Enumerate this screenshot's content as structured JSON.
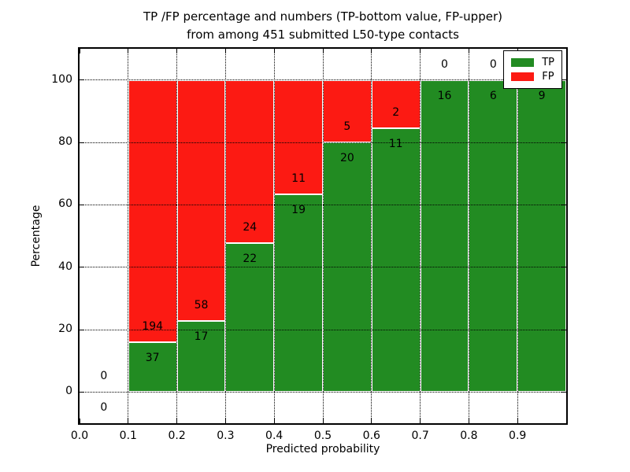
{
  "chart_data": {
    "type": "bar",
    "stacked": true,
    "title_line1": "TP /FP percentage and numbers (TP-bottom value, FP-upper)",
    "title_line2": "from among 451 submitted L50-type contacts",
    "xlabel": "Predicted probability",
    "ylabel": "Percentage",
    "xlim": [
      0.0,
      1.0
    ],
    "ylim": [
      -10,
      110
    ],
    "grid": "dotted black, both axes",
    "xtick_values": [
      0.0,
      0.1,
      0.2,
      0.3,
      0.4,
      0.5,
      0.6,
      0.7,
      0.8,
      0.9
    ],
    "xtick_labels": [
      "0.0",
      "0.1",
      "0.2",
      "0.3",
      "0.4",
      "0.5",
      "0.6",
      "0.7",
      "0.8",
      "0.9"
    ],
    "ytick_values": [
      0,
      20,
      40,
      60,
      80,
      100
    ],
    "ytick_labels": [
      "0",
      "20",
      "40",
      "60",
      "80",
      "100"
    ],
    "total_submitted": 451,
    "bins": [
      {
        "range": [
          0.0,
          0.1
        ],
        "tp": 0,
        "fp": 0,
        "tp_pct": 0.0
      },
      {
        "range": [
          0.1,
          0.2
        ],
        "tp": 37,
        "fp": 194,
        "tp_pct": 16.0
      },
      {
        "range": [
          0.2,
          0.3
        ],
        "tp": 17,
        "fp": 58,
        "tp_pct": 22.7
      },
      {
        "range": [
          0.3,
          0.4
        ],
        "tp": 22,
        "fp": 24,
        "tp_pct": 47.8
      },
      {
        "range": [
          0.4,
          0.5
        ],
        "tp": 19,
        "fp": 11,
        "tp_pct": 63.3
      },
      {
        "range": [
          0.5,
          0.6
        ],
        "tp": 20,
        "fp": 5,
        "tp_pct": 80.0
      },
      {
        "range": [
          0.6,
          0.7
        ],
        "tp": 11,
        "fp": 2,
        "tp_pct": 84.6
      },
      {
        "range": [
          0.7,
          0.8
        ],
        "tp": 16,
        "fp": 0,
        "tp_pct": 100.0
      },
      {
        "range": [
          0.8,
          0.9
        ],
        "tp": 6,
        "fp": 0,
        "tp_pct": 100.0
      },
      {
        "range": [
          0.9,
          1.0
        ],
        "tp": 9,
        "fp": 0,
        "tp_pct": 100.0
      }
    ],
    "colors": {
      "tp": "#228b22",
      "fp": "#fc1a13"
    },
    "legend": {
      "position": "upper right",
      "entries": [
        {
          "label": "TP",
          "color": "#228b22"
        },
        {
          "label": "FP",
          "color": "#fc1a13"
        }
      ]
    }
  }
}
